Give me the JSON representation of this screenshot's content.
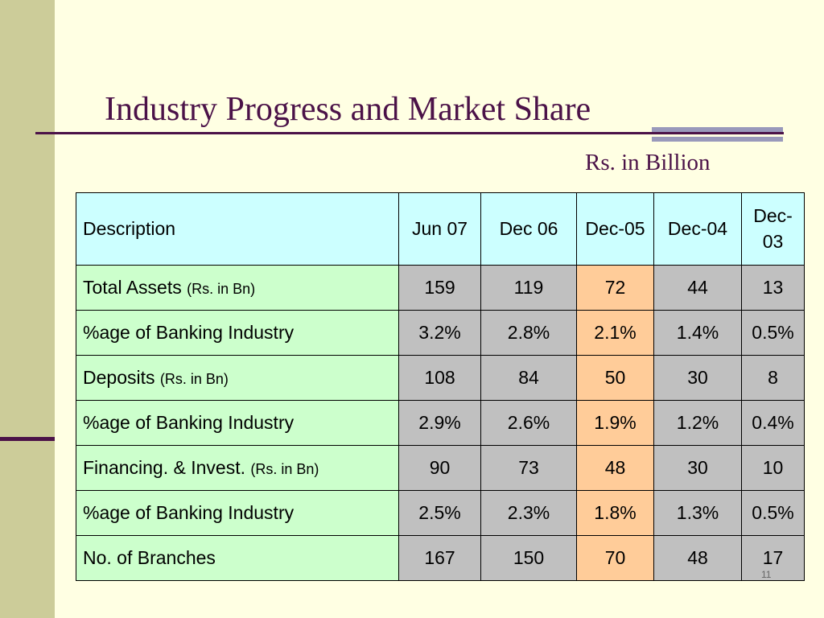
{
  "slide": {
    "title": "Industry Progress and Market Share",
    "unit_label": "Rs. in Billion",
    "slide_number": "11"
  },
  "table": {
    "headers": [
      "Description",
      "Jun 07",
      "Dec 06",
      "Dec-05",
      "Dec-04",
      "Dec-03"
    ],
    "rows": [
      {
        "label": "Total Assets",
        "unit": "(Rs. in Bn)",
        "values": [
          "159",
          "119",
          "72",
          "44",
          "13"
        ]
      },
      {
        "label": "%age of Banking Industry",
        "unit": "",
        "values": [
          "3.2%",
          "2.8%",
          "2.1%",
          "1.4%",
          "0.5%"
        ]
      },
      {
        "label": "Deposits",
        "unit": "(Rs. in Bn)",
        "values": [
          "108",
          "84",
          "50",
          "30",
          "8"
        ]
      },
      {
        "label": "%age of Banking Industry",
        "unit": "",
        "values": [
          "2.9%",
          "2.6%",
          "1.9%",
          "1.2%",
          "0.4%"
        ]
      },
      {
        "label": "Financing. & Invest.",
        "unit": "(Rs. in Bn)",
        "values": [
          "90",
          "73",
          "48",
          "30",
          "10"
        ]
      },
      {
        "label": "%age of Banking Industry",
        "unit": "",
        "values": [
          "2.5%",
          "2.3%",
          "1.8%",
          "1.3%",
          "0.5%"
        ]
      },
      {
        "label": "No. of Branches",
        "unit": "",
        "values": [
          "167",
          "150",
          "70",
          "48",
          "17"
        ]
      }
    ]
  },
  "colors": {
    "title": "#4B1248",
    "background": "#FFFFE3",
    "side_bar": "#CCCC99",
    "header_cell": "#CCFFFF",
    "description_cell": "#CCFFCC",
    "value_cell": "#C0C0C0",
    "highlight_column": "#FFCC99"
  }
}
